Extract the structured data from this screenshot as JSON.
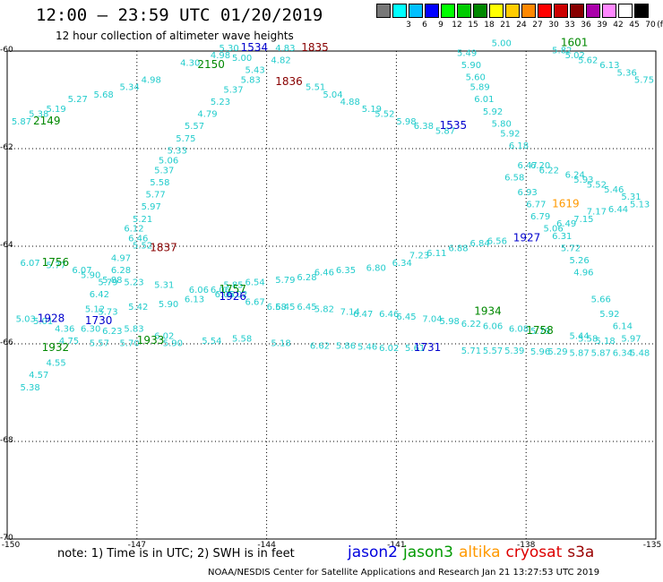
{
  "header": {
    "title": "12:00 – 23:59 UTC 01/20/2019",
    "subtitle": "12 hour collection of altimeter wave heights"
  },
  "colorbar": {
    "labels": [
      "3",
      "6",
      "9",
      "12",
      "15",
      "18",
      "21",
      "24",
      "27",
      "30",
      "33",
      "36",
      "39",
      "42",
      "45",
      "70"
    ],
    "unit": "(ft)",
    "colors": [
      "#777777",
      "#00ffff",
      "#00bfff",
      "#0000ff",
      "#00ff00",
      "#00cc00",
      "#008800",
      "#ffff00",
      "#ffcc00",
      "#ff8800",
      "#ff0000",
      "#cc0000",
      "#880000",
      "#aa00aa",
      "#ff88ff",
      "#ffffff",
      "#000000"
    ]
  },
  "axes": {
    "lat_labels": [
      "-60",
      "-62",
      "-64",
      "-66",
      "-68",
      "-70"
    ],
    "lon_labels": [
      "-150",
      "-147",
      "-144",
      "-141",
      "-138",
      "-135"
    ]
  },
  "footer": {
    "note": "note:  1) Time is in UTC;  2) SWH is in feet",
    "credit": "NOAA/NESDIS Center for Satellite Applications and Research   Jan 21 13:27:53 UTC 2019",
    "satellites": [
      {
        "name": "jason2",
        "color": "#0000dd"
      },
      {
        "name": "jason3",
        "color": "#009900"
      },
      {
        "name": "altika",
        "color": "#ff9900"
      },
      {
        "name": "cryosat",
        "color": "#dd0000"
      },
      {
        "name": "s3a",
        "color": "#990000"
      }
    ]
  },
  "map": {
    "wave_labels": [
      {
        "t": "5.87",
        "lon": -149.9,
        "lat": -61.5
      },
      {
        "t": "5.38",
        "lon": -149.5,
        "lat": -61.35
      },
      {
        "t": "5.19",
        "lon": -149.1,
        "lat": -61.25
      },
      {
        "t": "5.27",
        "lon": -148.6,
        "lat": -61.05
      },
      {
        "t": "5.68",
        "lon": -148.0,
        "lat": -60.95
      },
      {
        "t": "5.34",
        "lon": -147.4,
        "lat": -60.8
      },
      {
        "t": "4.98",
        "lon": -146.9,
        "lat": -60.65
      },
      {
        "t": "4.30",
        "lon": -146.0,
        "lat": -60.3
      },
      {
        "t": "4.98",
        "lon": -145.3,
        "lat": -60.15
      },
      {
        "t": "5.30",
        "lon": -145.1,
        "lat": -60.0
      },
      {
        "t": "5.00",
        "lon": -144.8,
        "lat": -60.2
      },
      {
        "t": "4.83",
        "lon": -143.8,
        "lat": -60.0
      },
      {
        "t": "4.82",
        "lon": -143.9,
        "lat": -60.25
      },
      {
        "t": "5.51",
        "lon": -143.1,
        "lat": -60.8
      },
      {
        "t": "5.04",
        "lon": -142.7,
        "lat": -60.95
      },
      {
        "t": "4.88",
        "lon": -142.3,
        "lat": -61.1
      },
      {
        "t": "5.19",
        "lon": -141.8,
        "lat": -61.25
      },
      {
        "t": "5.52",
        "lon": -141.5,
        "lat": -61.35
      },
      {
        "t": "5.98",
        "lon": -141.0,
        "lat": -61.5
      },
      {
        "t": "6.38",
        "lon": -140.6,
        "lat": -61.6
      },
      {
        "t": "5.87",
        "lon": -140.1,
        "lat": -61.7
      },
      {
        "t": "5.49",
        "lon": -139.6,
        "lat": -60.1
      },
      {
        "t": "5.90",
        "lon": -139.5,
        "lat": -60.35
      },
      {
        "t": "5.60",
        "lon": -139.4,
        "lat": -60.6
      },
      {
        "t": "5.89",
        "lon": -139.3,
        "lat": -60.8
      },
      {
        "t": "6.01",
        "lon": -139.2,
        "lat": -61.05
      },
      {
        "t": "5.92",
        "lon": -139.0,
        "lat": -61.3
      },
      {
        "t": "5.80",
        "lon": -138.8,
        "lat": -61.55
      },
      {
        "t": "5.92",
        "lon": -138.6,
        "lat": -61.75
      },
      {
        "t": "6.18",
        "lon": -138.4,
        "lat": -62.0
      },
      {
        "t": "6.47",
        "lon": -138.2,
        "lat": -62.4
      },
      {
        "t": "6.58",
        "lon": -138.5,
        "lat": -62.65
      },
      {
        "t": "6.93",
        "lon": -138.2,
        "lat": -62.95
      },
      {
        "t": "6.77",
        "lon": -138.0,
        "lat": -63.2
      },
      {
        "t": "6.79",
        "lon": -137.9,
        "lat": -63.45
      },
      {
        "t": "6.31",
        "lon": -137.4,
        "lat": -63.85
      },
      {
        "t": "5.72",
        "lon": -137.2,
        "lat": -64.1
      },
      {
        "t": "5.26",
        "lon": -137.0,
        "lat": -64.35
      },
      {
        "t": "4.96",
        "lon": -136.9,
        "lat": -64.6
      },
      {
        "t": "5.66",
        "lon": -136.5,
        "lat": -65.15
      },
      {
        "t": "5.92",
        "lon": -136.3,
        "lat": -65.45
      },
      {
        "t": "6.14",
        "lon": -136.0,
        "lat": -65.7
      },
      {
        "t": "5.97",
        "lon": -135.8,
        "lat": -65.95
      },
      {
        "t": "5.00",
        "lon": -138.8,
        "lat": -59.9
      },
      {
        "t": "5.82",
        "lon": -137.4,
        "lat": -60.05
      },
      {
        "t": "5.02",
        "lon": -137.1,
        "lat": -60.15
      },
      {
        "t": "5.62",
        "lon": -136.8,
        "lat": -60.25
      },
      {
        "t": "6.13",
        "lon": -136.3,
        "lat": -60.35
      },
      {
        "t": "5.36",
        "lon": -135.9,
        "lat": -60.5
      },
      {
        "t": "5.75",
        "lon": -135.5,
        "lat": -60.65
      },
      {
        "t": "6.20",
        "lon": -137.9,
        "lat": -62.4
      },
      {
        "t": "6.22",
        "lon": -137.7,
        "lat": -62.5
      },
      {
        "t": "6.24",
        "lon": -137.1,
        "lat": -62.6
      },
      {
        "t": "5.93",
        "lon": -136.9,
        "lat": -62.7
      },
      {
        "t": "5.52",
        "lon": -136.6,
        "lat": -62.8
      },
      {
        "t": "5.46",
        "lon": -136.2,
        "lat": -62.9
      },
      {
        "t": "5.31",
        "lon": -135.8,
        "lat": -63.05
      },
      {
        "t": "5.13",
        "lon": -135.6,
        "lat": -63.2
      },
      {
        "t": "6.44",
        "lon": -136.1,
        "lat": -63.3
      },
      {
        "t": "7.17",
        "lon": -136.6,
        "lat": -63.35
      },
      {
        "t": "7.15",
        "lon": -136.9,
        "lat": -63.5
      },
      {
        "t": "6.49",
        "lon": -137.3,
        "lat": -63.6
      },
      {
        "t": "5.06",
        "lon": -137.6,
        "lat": -63.7
      },
      {
        "t": "6.56",
        "lon": -138.9,
        "lat": -63.95
      },
      {
        "t": "6.84",
        "lon": -139.3,
        "lat": -64.0
      },
      {
        "t": "6.88",
        "lon": -139.8,
        "lat": -64.1
      },
      {
        "t": "6.11",
        "lon": -140.3,
        "lat": -64.2
      },
      {
        "t": "7.23",
        "lon": -140.7,
        "lat": -64.25
      },
      {
        "t": "6.34",
        "lon": -141.1,
        "lat": -64.4
      },
      {
        "t": "6.80",
        "lon": -141.7,
        "lat": -64.5
      },
      {
        "t": "6.35",
        "lon": -142.4,
        "lat": -64.55
      },
      {
        "t": "6.46",
        "lon": -142.9,
        "lat": -64.6
      },
      {
        "t": "6.28",
        "lon": -143.3,
        "lat": -64.7
      },
      {
        "t": "5.79",
        "lon": -143.8,
        "lat": -64.75
      },
      {
        "t": "6.54",
        "lon": -144.5,
        "lat": -64.8
      },
      {
        "t": "5.85",
        "lon": -145.0,
        "lat": -64.85
      },
      {
        "t": "6.06",
        "lon": -145.3,
        "lat": -64.95
      },
      {
        "t": "6.67",
        "lon": -144.5,
        "lat": -65.2
      },
      {
        "t": "6.45",
        "lon": -143.8,
        "lat": -65.3
      },
      {
        "t": "6.45",
        "lon": -143.3,
        "lat": -65.3
      },
      {
        "t": "5.82",
        "lon": -142.9,
        "lat": -65.35
      },
      {
        "t": "7.14",
        "lon": -142.3,
        "lat": -65.4
      },
      {
        "t": "6.47",
        "lon": -142.0,
        "lat": -65.45
      },
      {
        "t": "6.46",
        "lon": -141.4,
        "lat": -65.45
      },
      {
        "t": "6.45",
        "lon": -141.0,
        "lat": -65.5
      },
      {
        "t": "7.04",
        "lon": -140.4,
        "lat": -65.55
      },
      {
        "t": "5.98",
        "lon": -140.0,
        "lat": -65.6
      },
      {
        "t": "6.22",
        "lon": -139.5,
        "lat": -65.65
      },
      {
        "t": "6.06",
        "lon": -139.0,
        "lat": -65.7
      },
      {
        "t": "6.08",
        "lon": -138.4,
        "lat": -65.75
      },
      {
        "t": "5.79",
        "lon": -137.9,
        "lat": -65.8
      },
      {
        "t": "5.44",
        "lon": -137.0,
        "lat": -65.9
      },
      {
        "t": "5.58",
        "lon": -136.8,
        "lat": -65.95
      },
      {
        "t": "5.18",
        "lon": -136.4,
        "lat": -66.0
      },
      {
        "t": "6.07",
        "lon": -149.7,
        "lat": -64.4
      },
      {
        "t": "5.77",
        "lon": -149.1,
        "lat": -64.45
      },
      {
        "t": "6.07",
        "lon": -148.5,
        "lat": -64.55
      },
      {
        "t": "5.90",
        "lon": -148.3,
        "lat": -64.65
      },
      {
        "t": "6.28",
        "lon": -147.6,
        "lat": -64.55
      },
      {
        "t": "5.88",
        "lon": -147.8,
        "lat": -64.75
      },
      {
        "t": "5.79",
        "lon": -147.9,
        "lat": -64.8
      },
      {
        "t": "5.23",
        "lon": -147.3,
        "lat": -64.8
      },
      {
        "t": "5.31",
        "lon": -146.6,
        "lat": -64.85
      },
      {
        "t": "6.42",
        "lon": -148.1,
        "lat": -65.05
      },
      {
        "t": "5.12",
        "lon": -148.2,
        "lat": -65.35
      },
      {
        "t": "5.73",
        "lon": -147.9,
        "lat": -65.4
      },
      {
        "t": "5.42",
        "lon": -147.2,
        "lat": -65.3
      },
      {
        "t": "5.90",
        "lon": -146.5,
        "lat": -65.25
      },
      {
        "t": "6.13",
        "lon": -145.9,
        "lat": -65.15
      },
      {
        "t": "6.06",
        "lon": -145.8,
        "lat": -64.95
      },
      {
        "t": "6.05",
        "lon": -145.2,
        "lat": -65.05
      },
      {
        "t": "6.02",
        "lon": -144.9,
        "lat": -65.05
      },
      {
        "t": "5.03",
        "lon": -149.8,
        "lat": -65.55
      },
      {
        "t": "5.01",
        "lon": -149.4,
        "lat": -65.6
      },
      {
        "t": "4.36",
        "lon": -148.9,
        "lat": -65.75
      },
      {
        "t": "6.30",
        "lon": -148.3,
        "lat": -65.75
      },
      {
        "t": "6.23",
        "lon": -147.8,
        "lat": -65.8
      },
      {
        "t": "5.83",
        "lon": -147.3,
        "lat": -65.75
      },
      {
        "t": "6.02",
        "lon": -146.6,
        "lat": -65.9
      },
      {
        "t": "5.90",
        "lon": -146.4,
        "lat": -66.05
      },
      {
        "t": "5.70",
        "lon": -147.4,
        "lat": -66.05
      },
      {
        "t": "5.57",
        "lon": -148.1,
        "lat": -66.05
      },
      {
        "t": "4.75",
        "lon": -148.8,
        "lat": -66.0
      },
      {
        "t": "5.54",
        "lon": -145.5,
        "lat": -66.0
      },
      {
        "t": "5.58",
        "lon": -144.8,
        "lat": -65.95
      },
      {
        "t": "5.18",
        "lon": -143.9,
        "lat": -66.05
      },
      {
        "t": "6.62",
        "lon": -143.0,
        "lat": -66.1
      },
      {
        "t": "5.86",
        "lon": -142.4,
        "lat": -66.1
      },
      {
        "t": "5.46",
        "lon": -141.9,
        "lat": -66.12
      },
      {
        "t": "6.02",
        "lon": -141.4,
        "lat": -66.15
      },
      {
        "t": "5.61",
        "lon": -140.8,
        "lat": -66.15
      },
      {
        "t": "5.71",
        "lon": -139.5,
        "lat": -66.2
      },
      {
        "t": "5.57",
        "lon": -139.0,
        "lat": -66.2
      },
      {
        "t": "5.39",
        "lon": -138.5,
        "lat": -66.2
      },
      {
        "t": "5.96",
        "lon": -137.9,
        "lat": -66.22
      },
      {
        "t": "5.29",
        "lon": -137.5,
        "lat": -66.22
      },
      {
        "t": "5.87",
        "lon": -137.0,
        "lat": -66.25
      },
      {
        "t": "5.87",
        "lon": -136.5,
        "lat": -66.25
      },
      {
        "t": "6.34",
        "lon": -136.0,
        "lat": -66.25
      },
      {
        "t": "5.48",
        "lon": -135.6,
        "lat": -66.25
      },
      {
        "t": "4.55",
        "lon": -149.1,
        "lat": -66.45
      },
      {
        "t": "4.57",
        "lon": -149.5,
        "lat": -66.7
      },
      {
        "t": "5.38",
        "lon": -149.7,
        "lat": -66.95
      },
      {
        "t": "6.58",
        "lon": -144.0,
        "lat": -65.3
      },
      {
        "t": "5.33",
        "lon": -146.3,
        "lat": -62.1
      },
      {
        "t": "5.06",
        "lon": -146.5,
        "lat": -62.3
      },
      {
        "t": "5.37",
        "lon": -146.6,
        "lat": -62.5
      },
      {
        "t": "5.58",
        "lon": -146.7,
        "lat": -62.75
      },
      {
        "t": "5.77",
        "lon": -146.8,
        "lat": -63.0
      },
      {
        "t": "5.97",
        "lon": -146.9,
        "lat": -63.25
      },
      {
        "t": "5.21",
        "lon": -147.1,
        "lat": -63.5
      },
      {
        "t": "6.12",
        "lon": -147.3,
        "lat": -63.7
      },
      {
        "t": "6.46",
        "lon": -147.2,
        "lat": -63.9
      },
      {
        "t": "5.52",
        "lon": -147.1,
        "lat": -64.05
      },
      {
        "t": "4.97",
        "lon": -147.6,
        "lat": -64.3
      },
      {
        "t": "5.75",
        "lon": -146.1,
        "lat": -61.85
      },
      {
        "t": "5.57",
        "lon": -145.9,
        "lat": -61.6
      },
      {
        "t": "4.79",
        "lon": -145.6,
        "lat": -61.35
      },
      {
        "t": "5.23",
        "lon": -145.3,
        "lat": -61.1
      },
      {
        "t": "5.37",
        "lon": -145.0,
        "lat": -60.85
      },
      {
        "t": "5.83",
        "lon": -144.6,
        "lat": -60.65
      },
      {
        "t": "5.43",
        "lon": -144.5,
        "lat": -60.45
      }
    ],
    "time_labels": [
      {
        "t": "2149",
        "lon": -149.4,
        "lat": -61.5,
        "color": "#008800"
      },
      {
        "t": "2150",
        "lon": -145.6,
        "lat": -60.35,
        "color": "#008800"
      },
      {
        "t": "1534",
        "lon": -144.6,
        "lat": -60.0,
        "color": "#0000cc"
      },
      {
        "t": "1835",
        "lon": -143.2,
        "lat": -60.0,
        "color": "#880000"
      },
      {
        "t": "1836",
        "lon": -143.8,
        "lat": -60.7,
        "color": "#880000"
      },
      {
        "t": "1535",
        "lon": -140.0,
        "lat": -61.6,
        "color": "#0000cc"
      },
      {
        "t": "1601",
        "lon": -137.2,
        "lat": -59.9,
        "color": "#008800"
      },
      {
        "t": "1619",
        "lon": -137.4,
        "lat": -63.2,
        "color": "#ff9900"
      },
      {
        "t": "1927",
        "lon": -138.3,
        "lat": -63.9,
        "color": "#0000cc"
      },
      {
        "t": "1837",
        "lon": -146.7,
        "lat": -64.1,
        "color": "#880000"
      },
      {
        "t": "1756",
        "lon": -149.2,
        "lat": -64.4,
        "color": "#008800"
      },
      {
        "t": "1757",
        "lon": -145.1,
        "lat": -64.95,
        "color": "#008800"
      },
      {
        "t": "1926",
        "lon": -145.1,
        "lat": -65.1,
        "color": "#0000cc"
      },
      {
        "t": "1928",
        "lon": -149.3,
        "lat": -65.55,
        "color": "#0000cc"
      },
      {
        "t": "1730",
        "lon": -148.2,
        "lat": -65.6,
        "color": "#0000cc"
      },
      {
        "t": "1934",
        "lon": -139.2,
        "lat": -65.4,
        "color": "#008800"
      },
      {
        "t": "1758",
        "lon": -138.0,
        "lat": -65.8,
        "color": "#008800"
      },
      {
        "t": "1933",
        "lon": -147.0,
        "lat": -66.0,
        "color": "#008800"
      },
      {
        "t": "1932",
        "lon": -149.2,
        "lat": -66.15,
        "color": "#008800"
      },
      {
        "t": "1731",
        "lon": -140.6,
        "lat": -66.15,
        "color": "#0000cc"
      }
    ]
  }
}
